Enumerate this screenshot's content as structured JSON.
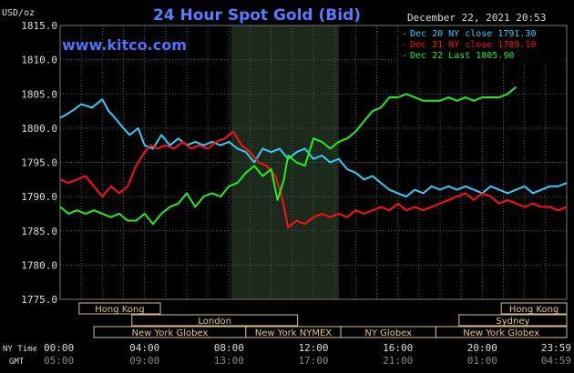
{
  "chart_data": {
    "type": "line",
    "title": "24 Hour Spot Gold (Bid)",
    "website": "www.kitco.com",
    "date_time": "December 22, 2021 20:53",
    "ylabel": "USD/oz",
    "ylim": [
      1775,
      1815
    ],
    "y_ticks": [
      1775,
      1780,
      1785,
      1790,
      1795,
      1800,
      1805,
      1810,
      1815
    ],
    "y_tick_labels": [
      "1775.0",
      "1780.0",
      "1785.0",
      "1790.0",
      "1795.0",
      "1800.0",
      "1805.0",
      "1810.0",
      "1815.0"
    ],
    "xlim": [
      0,
      24
    ],
    "x_ticks": [
      0,
      4,
      8,
      12,
      16,
      20,
      24
    ],
    "x_ticks_ny": [
      "00:00",
      "04:00",
      "08:00",
      "12:00",
      "16:00",
      "20:00",
      "23:59"
    ],
    "x_ticks_gmt": [
      "05:00",
      "09:00",
      "13:00",
      "17:00",
      "21:00",
      "01:00",
      "04:59"
    ],
    "x_axis_row_labels": [
      "NY Time",
      "GMT"
    ],
    "shaded_range": [
      8.1,
      13.2
    ],
    "grid": true,
    "legend_position": "top-right",
    "sessions": [
      {
        "label": "Hong Kong",
        "row": 0,
        "start": 0.9,
        "end": 4.75
      },
      {
        "label": "London",
        "row": 1,
        "start": 3.4,
        "end": 11.25
      },
      {
        "label": "New York Globex",
        "row": 2,
        "start": 1.6,
        "end": 8.8
      },
      {
        "label": "New York NYMEX",
        "row": 2,
        "start": 8.8,
        "end": 13.3
      },
      {
        "label": "NY Globex",
        "row": 2,
        "start": 13.3,
        "end": 17.8
      },
      {
        "label": "Hong Kong",
        "row": 0,
        "start": 20.9,
        "end": 24
      },
      {
        "label": "Sydney",
        "row": 1,
        "start": 18.9,
        "end": 24
      },
      {
        "label": "New York Globex",
        "row": 2,
        "start": 17.8,
        "end": 24
      }
    ],
    "series": [
      {
        "name": "Dec 20 NY close 1791.30",
        "color": "#33ccff",
        "x": [
          0,
          0.3,
          0.7,
          1.0,
          1.5,
          2.0,
          2.3,
          2.6,
          3.0,
          3.3,
          3.7,
          4.0,
          4.4,
          4.8,
          5.2,
          5.6,
          6.0,
          6.4,
          6.8,
          7.2,
          7.6,
          8.0,
          8.4,
          8.8,
          9.2,
          9.6,
          10.0,
          10.4,
          10.8,
          11.2,
          11.6,
          12.0,
          12.4,
          12.8,
          13.2,
          13.6,
          14.0,
          14.4,
          14.8,
          15.2,
          15.6,
          16.0,
          16.4,
          16.8,
          17.2,
          17.6,
          18.0,
          18.4,
          18.8,
          19.2,
          19.6,
          20.0,
          20.4,
          20.8,
          21.2,
          21.6,
          22.0,
          22.4,
          22.8,
          23.2,
          23.6,
          24.0
        ],
        "y": [
          1801.5,
          1802.0,
          1802.8,
          1803.5,
          1803.0,
          1804.2,
          1802.5,
          1801.5,
          1800.0,
          1799.0,
          1800.0,
          1797.5,
          1797.0,
          1799.0,
          1797.5,
          1798.5,
          1797.5,
          1798.0,
          1797.5,
          1798.0,
          1797.5,
          1798.0,
          1797.0,
          1796.5,
          1795.0,
          1797.0,
          1796.5,
          1797.0,
          1795.5,
          1796.5,
          1797.0,
          1795.5,
          1796.0,
          1795.0,
          1795.5,
          1794.0,
          1793.5,
          1792.5,
          1793.0,
          1792.0,
          1791.0,
          1790.5,
          1790.0,
          1791.0,
          1790.5,
          1791.5,
          1791.0,
          1791.5,
          1791.0,
          1791.5,
          1791.0,
          1790.5,
          1791.5,
          1791.0,
          1790.5,
          1791.0,
          1791.5,
          1790.5,
          1791.0,
          1791.5,
          1791.5,
          1792.0
        ]
      },
      {
        "name": "Dec 21 NY close 1789.10",
        "color": "#ff1111",
        "x": [
          0,
          0.4,
          0.8,
          1.2,
          1.6,
          2.0,
          2.4,
          2.8,
          3.2,
          3.6,
          4.0,
          4.3,
          4.6,
          5.0,
          5.4,
          5.8,
          6.2,
          6.6,
          7.0,
          7.4,
          7.8,
          8.2,
          8.6,
          9.0,
          9.4,
          9.8,
          10.2,
          10.5,
          10.8,
          11.2,
          11.6,
          12.0,
          12.4,
          12.8,
          13.2,
          13.6,
          14.0,
          14.4,
          14.8,
          15.2,
          15.6,
          16.0,
          16.4,
          16.8,
          17.2,
          17.6,
          18.0,
          18.4,
          18.8,
          19.2,
          19.6,
          20.0,
          20.4,
          20.8,
          21.2,
          21.6,
          22.0,
          22.4,
          22.8,
          23.2,
          23.6,
          24.0
        ],
        "y": [
          1792.5,
          1792.0,
          1792.5,
          1793.0,
          1791.5,
          1790.0,
          1791.5,
          1790.5,
          1791.5,
          1794.5,
          1796.5,
          1797.5,
          1797.0,
          1797.5,
          1797.0,
          1798.0,
          1797.0,
          1797.5,
          1797.0,
          1798.0,
          1798.5,
          1799.5,
          1797.5,
          1796.5,
          1795.0,
          1794.5,
          1793.0,
          1790.0,
          1785.5,
          1786.5,
          1786.0,
          1787.0,
          1787.5,
          1787.0,
          1787.5,
          1787.0,
          1788.0,
          1787.5,
          1788.0,
          1788.5,
          1788.0,
          1789.0,
          1788.0,
          1788.5,
          1788.0,
          1788.5,
          1789.0,
          1789.5,
          1790.0,
          1790.5,
          1789.5,
          1790.5,
          1790.0,
          1789.0,
          1789.5,
          1789.0,
          1788.5,
          1789.0,
          1788.5,
          1788.5,
          1788.0,
          1788.5
        ]
      },
      {
        "name": "Dec 22 Last 1805.90",
        "color": "#22ee22",
        "x": [
          0,
          0.4,
          0.8,
          1.2,
          1.6,
          2.0,
          2.4,
          2.8,
          3.2,
          3.6,
          4.0,
          4.4,
          4.8,
          5.2,
          5.6,
          6.0,
          6.4,
          6.8,
          7.2,
          7.6,
          8.0,
          8.4,
          8.8,
          9.2,
          9.6,
          10.0,
          10.3,
          10.6,
          10.8,
          11.2,
          11.6,
          12.0,
          12.4,
          12.8,
          13.2,
          13.6,
          14.0,
          14.4,
          14.8,
          15.2,
          15.6,
          16.0,
          16.4,
          16.8,
          17.2,
          17.6,
          18.0,
          18.4,
          18.8,
          19.2,
          19.6,
          20.0,
          20.4,
          20.8,
          21.2,
          21.6
        ],
        "y": [
          1788.5,
          1787.5,
          1788.0,
          1787.5,
          1788.0,
          1787.5,
          1787.0,
          1787.5,
          1786.5,
          1786.5,
          1787.5,
          1786.0,
          1787.5,
          1788.5,
          1789.0,
          1790.5,
          1788.5,
          1790.0,
          1790.5,
          1790.0,
          1791.5,
          1792.0,
          1793.5,
          1794.5,
          1793.0,
          1794.0,
          1789.5,
          1792.5,
          1796.0,
          1795.0,
          1794.5,
          1798.5,
          1798.0,
          1797.0,
          1798.0,
          1798.5,
          1799.5,
          1801.0,
          1802.5,
          1803.0,
          1804.5,
          1804.5,
          1805.0,
          1804.5,
          1804.0,
          1804.0,
          1804.0,
          1804.5,
          1804.0,
          1804.5,
          1804.0,
          1804.5,
          1804.5,
          1804.5,
          1805.0,
          1806.0
        ]
      }
    ]
  }
}
